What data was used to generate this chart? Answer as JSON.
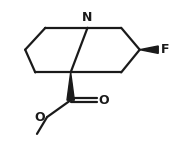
{
  "bg_color": "#ffffff",
  "line_color": "#1a1a1a",
  "line_width": 1.6,
  "font_size": 9.0,
  "N_label": "N",
  "F_label": "F",
  "O_label": "O",
  "xlim": [
    0,
    10
  ],
  "ylim": [
    0,
    9.5
  ]
}
